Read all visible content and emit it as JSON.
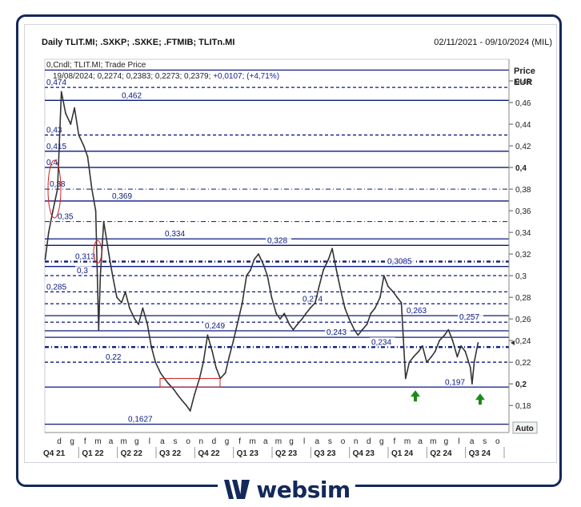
{
  "header": {
    "title": "Daily TLIT.MI; .SXKP; .SXKE; .FTMIB; TLITn.MI",
    "date_range": "02/11/2021 - 09/10/2024 (MIL)"
  },
  "legend": {
    "line1": "0,Cndl; TLIT.MI; Trade Price",
    "line2_date": "19/08/2024; 0,2274; 0,2383; 0,2273; 0,2379; ",
    "line2_change": "+0,0107; (+4,71%)"
  },
  "axis": {
    "unit_line1": "Price",
    "unit_line2": "EUR",
    "auto_label": "Auto"
  },
  "brand": {
    "name": "websim"
  },
  "colors": {
    "line": "#0a1a80",
    "label": "#0a1a80",
    "price": "#333333",
    "frame": "#14285a",
    "arrow": "#1a8a1a",
    "ellipse": "#d02020"
  },
  "chart_data": {
    "type": "line",
    "ylim": [
      0.155,
      0.5
    ],
    "y_ticks": [
      {
        "value": 0.48,
        "label": "0,48",
        "bold": false
      },
      {
        "value": 0.46,
        "label": "0,46",
        "bold": false
      },
      {
        "value": 0.44,
        "label": "0,44",
        "bold": false
      },
      {
        "value": 0.42,
        "label": "0,42",
        "bold": false
      },
      {
        "value": 0.4,
        "label": "0,4",
        "bold": true
      },
      {
        "value": 0.38,
        "label": "0,38",
        "bold": false
      },
      {
        "value": 0.36,
        "label": "0,36",
        "bold": false
      },
      {
        "value": 0.34,
        "label": "0,34",
        "bold": false
      },
      {
        "value": 0.32,
        "label": "0,32",
        "bold": false
      },
      {
        "value": 0.3,
        "label": "0,3",
        "bold": false
      },
      {
        "value": 0.28,
        "label": "0,28",
        "bold": false
      },
      {
        "value": 0.26,
        "label": "0,26",
        "bold": false
      },
      {
        "value": 0.24,
        "label": "0,24",
        "bold": false
      },
      {
        "value": 0.22,
        "label": "0,22",
        "bold": false
      },
      {
        "value": 0.2,
        "label": "0,2",
        "bold": true
      },
      {
        "value": 0.18,
        "label": "0,18",
        "bold": false
      }
    ],
    "month_ticks": [
      "d",
      "g",
      "f",
      "m",
      "a",
      "m",
      "g",
      "l",
      "a",
      "s",
      "o",
      "n",
      "d",
      "g",
      "f",
      "m",
      "a",
      "m",
      "g",
      "l",
      "a",
      "s",
      "o",
      "n",
      "d",
      "g",
      "f",
      "m",
      "a",
      "m",
      "g",
      "l",
      "a",
      "s",
      "o"
    ],
    "quarters": [
      "Q4 21",
      "Q1 22",
      "Q2 22",
      "Q3 22",
      "Q4 22",
      "Q1 23",
      "Q2 23",
      "Q3 23",
      "Q4 23",
      "Q1 24",
      "Q2 24",
      "Q3 24"
    ],
    "levels": [
      {
        "value": 0.49,
        "label": "",
        "style": "solid"
      },
      {
        "value": 0.474,
        "label": "0,474",
        "style": "dashed"
      },
      {
        "value": 0.462,
        "label": "0,462",
        "style": "solid"
      },
      {
        "value": 0.43,
        "label": "0,43",
        "style": "dashed"
      },
      {
        "value": 0.415,
        "label": "0,415",
        "style": "solid"
      },
      {
        "value": 0.4,
        "label": "0,4",
        "style": "solid"
      },
      {
        "value": 0.38,
        "label": "0,38",
        "style": "dashdot"
      },
      {
        "value": 0.369,
        "label": "0,369",
        "style": "solid"
      },
      {
        "value": 0.35,
        "label": "0,35",
        "style": "dashdot"
      },
      {
        "value": 0.334,
        "label": "0,334",
        "style": "solid"
      },
      {
        "value": 0.328,
        "label": "0,328",
        "style": "solid"
      },
      {
        "value": 0.313,
        "label": "0,313",
        "style": "bolddash"
      },
      {
        "value": 0.3085,
        "label": "0,3085",
        "style": "solid"
      },
      {
        "value": 0.3,
        "label": "0,3",
        "style": "dashed"
      },
      {
        "value": 0.285,
        "label": "0,285",
        "style": "dashed"
      },
      {
        "value": 0.274,
        "label": "0,274",
        "style": "dashed"
      },
      {
        "value": 0.263,
        "label": "0,263",
        "style": "solid"
      },
      {
        "value": 0.257,
        "label": "0,257",
        "style": "dashed"
      },
      {
        "value": 0.249,
        "label": "0,249",
        "style": "solid"
      },
      {
        "value": 0.243,
        "label": "0,243",
        "style": "solid"
      },
      {
        "value": 0.234,
        "label": "0,234",
        "style": "bolddash"
      },
      {
        "value": 0.22,
        "label": "0,22",
        "style": "dashed"
      },
      {
        "value": 0.197,
        "label": "0,197",
        "style": "solid"
      },
      {
        "value": 0.1627,
        "label": "0,1627",
        "style": "solid"
      }
    ],
    "last_price": 0.2379,
    "series": [
      {
        "x": [
          "2021-11-02",
          "2021-11-10",
          "2021-11-20",
          "2021-12-01",
          "2021-12-10",
          "2021-12-20",
          "2022-01-01",
          "2022-01-10",
          "2022-01-20",
          "2022-02-01",
          "2022-02-10",
          "2022-02-20",
          "2022-03-01",
          "2022-03-08",
          "2022-03-12",
          "2022-03-20",
          "2022-04-01",
          "2022-04-10",
          "2022-04-20",
          "2022-05-01",
          "2022-05-10",
          "2022-05-20",
          "2022-06-01",
          "2022-06-10",
          "2022-06-20",
          "2022-07-01",
          "2022-07-10",
          "2022-07-20",
          "2022-08-01",
          "2022-08-10",
          "2022-08-20",
          "2022-09-01",
          "2022-09-10",
          "2022-09-20",
          "2022-10-01",
          "2022-10-10",
          "2022-10-20",
          "2022-11-01",
          "2022-11-10",
          "2022-11-20",
          "2022-12-01",
          "2022-12-10",
          "2022-12-20",
          "2023-01-01",
          "2023-01-10",
          "2023-01-20",
          "2023-02-01",
          "2023-02-10",
          "2023-02-20",
          "2023-03-01",
          "2023-03-10",
          "2023-03-20",
          "2023-04-01",
          "2023-04-10",
          "2023-04-20",
          "2023-05-01",
          "2023-05-10",
          "2023-05-20",
          "2023-06-01",
          "2023-06-10",
          "2023-06-20",
          "2023-07-01",
          "2023-07-10",
          "2023-07-20",
          "2023-08-01",
          "2023-08-10",
          "2023-08-20",
          "2023-09-01",
          "2023-09-10",
          "2023-09-20",
          "2023-10-01",
          "2023-10-10",
          "2023-10-20",
          "2023-11-01",
          "2023-11-10",
          "2023-11-20",
          "2023-12-01",
          "2023-12-10",
          "2023-12-20",
          "2024-01-01",
          "2024-01-10",
          "2024-01-20",
          "2024-02-01",
          "2024-02-10",
          "2024-02-20",
          "2024-03-01",
          "2024-03-10",
          "2024-03-20",
          "2024-04-01",
          "2024-04-10",
          "2024-04-20",
          "2024-05-01",
          "2024-05-10",
          "2024-05-20",
          "2024-06-01",
          "2024-06-10",
          "2024-06-20",
          "2024-07-01",
          "2024-07-10",
          "2024-07-20",
          "2024-08-01",
          "2024-08-05",
          "2024-08-10",
          "2024-08-19"
        ],
        "values": [
          0.315,
          0.34,
          0.36,
          0.38,
          0.47,
          0.45,
          0.44,
          0.455,
          0.43,
          0.42,
          0.41,
          0.38,
          0.36,
          0.25,
          0.3,
          0.35,
          0.32,
          0.3,
          0.28,
          0.275,
          0.285,
          0.27,
          0.26,
          0.255,
          0.27,
          0.255,
          0.235,
          0.22,
          0.21,
          0.205,
          0.2,
          0.195,
          0.19,
          0.185,
          0.18,
          0.175,
          0.19,
          0.205,
          0.22,
          0.245,
          0.23,
          0.215,
          0.205,
          0.21,
          0.225,
          0.24,
          0.26,
          0.275,
          0.3,
          0.305,
          0.315,
          0.32,
          0.31,
          0.3,
          0.28,
          0.265,
          0.26,
          0.265,
          0.255,
          0.25,
          0.255,
          0.26,
          0.265,
          0.27,
          0.275,
          0.29,
          0.305,
          0.315,
          0.325,
          0.305,
          0.285,
          0.27,
          0.26,
          0.25,
          0.245,
          0.25,
          0.255,
          0.265,
          0.27,
          0.28,
          0.3,
          0.29,
          0.285,
          0.28,
          0.275,
          0.205,
          0.22,
          0.225,
          0.23,
          0.235,
          0.22,
          0.225,
          0.23,
          0.24,
          0.245,
          0.25,
          0.24,
          0.225,
          0.235,
          0.23,
          0.215,
          0.2,
          0.22,
          0.2379
        ]
      }
    ]
  }
}
